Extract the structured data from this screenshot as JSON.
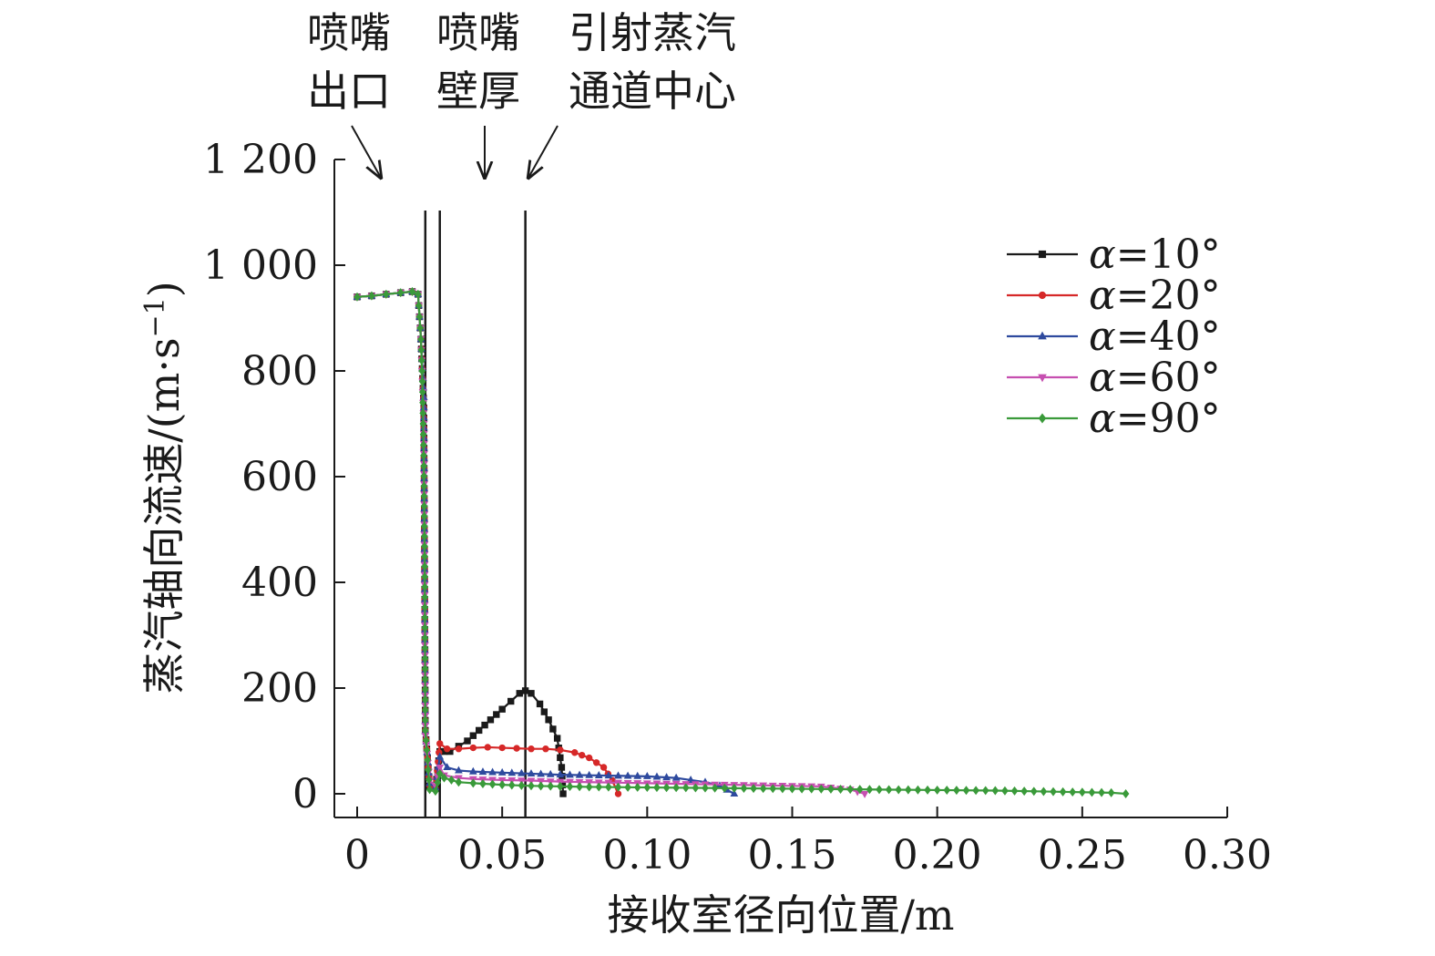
{
  "chart_data": {
    "type": "line",
    "xlabel": "接收室径向位置/m",
    "ylabel": "蒸汽轴向流速/(m·s",
    "ylabel_sup": "−1",
    "ylabel_close": ")",
    "xlim": [
      0,
      0.3
    ],
    "ylim": [
      0,
      1200
    ],
    "x_ticks": [
      0,
      0.05,
      0.1,
      0.15,
      0.2,
      0.25,
      0.3
    ],
    "x_tick_labels": [
      "0",
      "0.05",
      "0.10",
      "0.15",
      "0.20",
      "0.25",
      "0.30"
    ],
    "y_ticks": [
      0,
      200,
      400,
      600,
      800,
      1000,
      1200
    ],
    "y_tick_labels": [
      "0",
      "200",
      "400",
      "600",
      "800",
      "1 000",
      "1 200"
    ],
    "grid": false,
    "legend_position": "top-right",
    "vertical_lines": [
      0.0235,
      0.0285,
      0.058
    ],
    "annotations": [
      {
        "line1": "喷嘴",
        "line2": "出口"
      },
      {
        "line1": "喷嘴",
        "line2": "壁厚"
      },
      {
        "line1": "引射蒸汽",
        "line2": "通道中心"
      }
    ],
    "series": [
      {
        "name": "α=10°",
        "greek": "α",
        "label_rest": "=10°",
        "color": "#1a1a1a",
        "marker": "square",
        "points": [
          [
            0,
            940
          ],
          [
            0.005,
            942
          ],
          [
            0.01,
            945
          ],
          [
            0.015,
            948
          ],
          [
            0.019,
            950
          ],
          [
            0.021,
            945
          ],
          [
            0.022,
            860
          ],
          [
            0.023,
            730
          ],
          [
            0.0235,
            120
          ],
          [
            0.025,
            15
          ],
          [
            0.027,
            10
          ],
          [
            0.0285,
            80
          ],
          [
            0.03,
            80
          ],
          [
            0.032,
            80
          ],
          [
            0.035,
            90
          ],
          [
            0.038,
            100
          ],
          [
            0.042,
            120
          ],
          [
            0.046,
            140
          ],
          [
            0.05,
            160
          ],
          [
            0.053,
            175
          ],
          [
            0.056,
            190
          ],
          [
            0.058,
            195
          ],
          [
            0.06,
            190
          ],
          [
            0.063,
            170
          ],
          [
            0.066,
            140
          ],
          [
            0.069,
            105
          ],
          [
            0.0705,
            50
          ],
          [
            0.071,
            0
          ]
        ]
      },
      {
        "name": "α=20°",
        "greek": "α",
        "label_rest": "=20°",
        "color": "#d62828",
        "marker": "circle",
        "points": [
          [
            0,
            940
          ],
          [
            0.005,
            942
          ],
          [
            0.01,
            945
          ],
          [
            0.015,
            948
          ],
          [
            0.019,
            950
          ],
          [
            0.021,
            945
          ],
          [
            0.022,
            860
          ],
          [
            0.023,
            730
          ],
          [
            0.0235,
            120
          ],
          [
            0.025,
            15
          ],
          [
            0.027,
            10
          ],
          [
            0.0285,
            95
          ],
          [
            0.031,
            85
          ],
          [
            0.035,
            85
          ],
          [
            0.04,
            87
          ],
          [
            0.045,
            88
          ],
          [
            0.05,
            87
          ],
          [
            0.055,
            86
          ],
          [
            0.06,
            85
          ],
          [
            0.065,
            85
          ],
          [
            0.07,
            83
          ],
          [
            0.075,
            78
          ],
          [
            0.08,
            68
          ],
          [
            0.085,
            50
          ],
          [
            0.088,
            25
          ],
          [
            0.09,
            0
          ]
        ]
      },
      {
        "name": "α=40°",
        "greek": "α",
        "label_rest": "=40°",
        "color": "#2e4a9e",
        "marker": "triangle",
        "points": [
          [
            0,
            940
          ],
          [
            0.005,
            942
          ],
          [
            0.01,
            945
          ],
          [
            0.015,
            948
          ],
          [
            0.019,
            950
          ],
          [
            0.021,
            945
          ],
          [
            0.022,
            860
          ],
          [
            0.023,
            750
          ],
          [
            0.0235,
            118
          ],
          [
            0.025,
            20
          ],
          [
            0.027,
            12
          ],
          [
            0.0285,
            70
          ],
          [
            0.031,
            50
          ],
          [
            0.035,
            44
          ],
          [
            0.04,
            42
          ],
          [
            0.05,
            40
          ],
          [
            0.06,
            38
          ],
          [
            0.07,
            36
          ],
          [
            0.08,
            35
          ],
          [
            0.09,
            34
          ],
          [
            0.1,
            33
          ],
          [
            0.11,
            30
          ],
          [
            0.115,
            26
          ],
          [
            0.12,
            22
          ],
          [
            0.125,
            15
          ],
          [
            0.13,
            0
          ]
        ]
      },
      {
        "name": "α=60°",
        "greek": "α",
        "label_rest": "=60°",
        "color": "#c64fb0",
        "marker": "triangle-down",
        "points": [
          [
            0,
            940
          ],
          [
            0.005,
            942
          ],
          [
            0.01,
            945
          ],
          [
            0.015,
            948
          ],
          [
            0.019,
            950
          ],
          [
            0.021,
            945
          ],
          [
            0.022,
            860
          ],
          [
            0.023,
            700
          ],
          [
            0.0235,
            110
          ],
          [
            0.025,
            25
          ],
          [
            0.027,
            15
          ],
          [
            0.0285,
            50
          ],
          [
            0.03,
            35
          ],
          [
            0.035,
            30
          ],
          [
            0.04,
            28
          ],
          [
            0.05,
            26
          ],
          [
            0.06,
            25
          ],
          [
            0.07,
            23
          ],
          [
            0.08,
            22
          ],
          [
            0.09,
            21
          ],
          [
            0.1,
            20
          ],
          [
            0.11,
            19
          ],
          [
            0.12,
            18
          ],
          [
            0.13,
            17
          ],
          [
            0.14,
            16
          ],
          [
            0.15,
            15
          ],
          [
            0.16,
            14
          ],
          [
            0.17,
            8
          ],
          [
            0.175,
            0
          ]
        ]
      },
      {
        "name": "α=90°",
        "greek": "α",
        "label_rest": "=90°",
        "color": "#3a9a3a",
        "marker": "diamond",
        "points": [
          [
            0,
            940
          ],
          [
            0.005,
            942
          ],
          [
            0.01,
            945
          ],
          [
            0.015,
            948
          ],
          [
            0.019,
            950
          ],
          [
            0.021,
            945
          ],
          [
            0.022,
            860
          ],
          [
            0.0225,
            780
          ],
          [
            0.023,
            620
          ],
          [
            0.0233,
            430
          ],
          [
            0.0235,
            120
          ],
          [
            0.025,
            8
          ],
          [
            0.027,
            5
          ],
          [
            0.0285,
            38
          ],
          [
            0.03,
            30
          ],
          [
            0.035,
            22
          ],
          [
            0.04,
            20
          ],
          [
            0.05,
            17
          ],
          [
            0.06,
            15
          ],
          [
            0.08,
            13
          ],
          [
            0.1,
            12
          ],
          [
            0.12,
            11
          ],
          [
            0.14,
            10
          ],
          [
            0.16,
            9
          ],
          [
            0.18,
            8
          ],
          [
            0.2,
            7
          ],
          [
            0.22,
            6
          ],
          [
            0.24,
            4
          ],
          [
            0.26,
            2
          ],
          [
            0.265,
            0
          ]
        ]
      }
    ]
  }
}
